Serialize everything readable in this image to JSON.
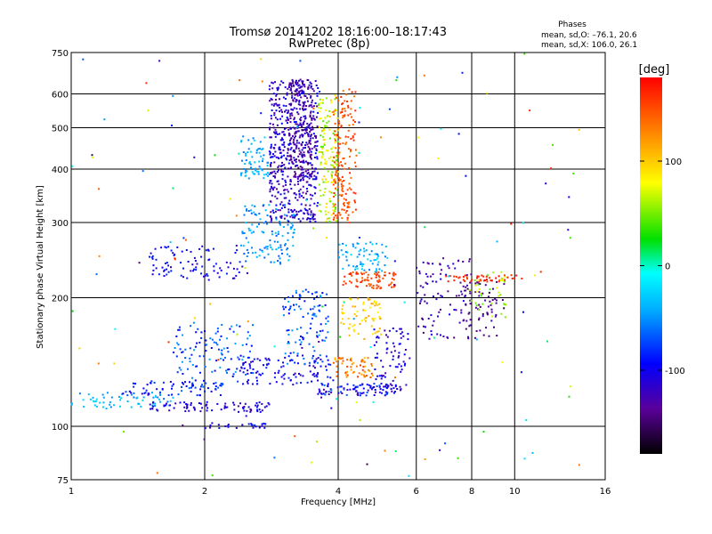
{
  "chart_data": {
    "type": "scatter",
    "title": "Tromsø 20141202 18:16:00–18:17:43",
    "subtitle": "RwPretec (8p)",
    "stats": {
      "heading": "Phases",
      "o_line": "mean, sd,O: –76.1, 20.6",
      "x_line": "mean, sd,X: 106.0, 26.1"
    },
    "xlabel": "Frequency [MHz]",
    "ylabel": "Stationary phase Virtual Height [km]",
    "x_scale": "log",
    "y_scale": "log",
    "xlim": [
      1,
      16
    ],
    "ylim": [
      75,
      750
    ],
    "x_ticks": [
      {
        "value": 1,
        "label": "1"
      },
      {
        "value": 2,
        "label": "2"
      },
      {
        "value": 4,
        "label": "4"
      },
      {
        "value": 6,
        "label": "6"
      },
      {
        "value": 8,
        "label": "8"
      },
      {
        "value": 10,
        "label": "10"
      },
      {
        "value": 16,
        "label": "16"
      }
    ],
    "y_ticks": [
      {
        "value": 75,
        "label": "75"
      },
      {
        "value": 100,
        "label": "100"
      },
      {
        "value": 200,
        "label": "200"
      },
      {
        "value": 300,
        "label": "300"
      },
      {
        "value": 400,
        "label": "400"
      },
      {
        "value": 500,
        "label": "500"
      },
      {
        "value": 600,
        "label": "600"
      },
      {
        "value": 750,
        "label": "750"
      }
    ],
    "grid": true,
    "colorbar": {
      "label": "[deg]",
      "min": -180,
      "max": 180,
      "ticks": [
        {
          "value": 100,
          "label": "100"
        },
        {
          "value": 0,
          "label": "0"
        },
        {
          "value": -100,
          "label": "-100"
        }
      ]
    },
    "clusters": [
      {
        "x": [
          1.0,
          1.7
        ],
        "y": [
          110,
          120
        ],
        "phase": [
          -60,
          -20
        ],
        "n": 60
      },
      {
        "x": [
          1.3,
          2.2
        ],
        "y": [
          118,
          128
        ],
        "phase": [
          -110,
          -60
        ],
        "n": 70
      },
      {
        "x": [
          1.5,
          2.8
        ],
        "y": [
          108,
          114
        ],
        "phase": [
          -130,
          -90
        ],
        "n": 80
      },
      {
        "x": [
          2.0,
          2.8
        ],
        "y": [
          99,
          102
        ],
        "phase": [
          -130,
          -80
        ],
        "n": 25
      },
      {
        "x": [
          1.7,
          2.6
        ],
        "y": [
          125,
          175
        ],
        "phase": [
          -100,
          -40
        ],
        "n": 120
      },
      {
        "x": [
          2.4,
          3.9
        ],
        "y": [
          125,
          145
        ],
        "phase": [
          -120,
          -80
        ],
        "n": 100
      },
      {
        "x": [
          3.0,
          3.8
        ],
        "y": [
          140,
          210
        ],
        "phase": [
          -100,
          -40
        ],
        "n": 110
      },
      {
        "x": [
          3.6,
          5.4
        ],
        "y": [
          118,
          126
        ],
        "phase": [
          -130,
          -60
        ],
        "n": 90
      },
      {
        "x": [
          4.8,
          5.8
        ],
        "y": [
          120,
          170
        ],
        "phase": [
          -130,
          -90
        ],
        "n": 80
      },
      {
        "x": [
          3.9,
          4.8
        ],
        "y": [
          130,
          145
        ],
        "phase": [
          100,
          160
        ],
        "n": 60
      },
      {
        "x": [
          4.0,
          5.0
        ],
        "y": [
          160,
          200
        ],
        "phase": [
          80,
          120
        ],
        "n": 70
      },
      {
        "x": [
          4.1,
          5.4
        ],
        "y": [
          210,
          230
        ],
        "phase": [
          140,
          170
        ],
        "n": 80
      },
      {
        "x": [
          4.0,
          5.2
        ],
        "y": [
          230,
          270
        ],
        "phase": [
          -60,
          -20
        ],
        "n": 70
      },
      {
        "x": [
          1.5,
          2.5
        ],
        "y": [
          220,
          265
        ],
        "phase": [
          -120,
          -80
        ],
        "n": 90
      },
      {
        "x": [
          2.4,
          3.2
        ],
        "y": [
          240,
          330
        ],
        "phase": [
          -70,
          -30
        ],
        "n": 120
      },
      {
        "x": [
          2.4,
          2.8
        ],
        "y": [
          380,
          480
        ],
        "phase": [
          -60,
          -20
        ],
        "n": 70
      },
      {
        "x": [
          2.8,
          3.6
        ],
        "y": [
          300,
          650
        ],
        "phase": [
          -140,
          -90
        ],
        "n": 520
      },
      {
        "x": [
          3.1,
          3.5
        ],
        "y": [
          380,
          650
        ],
        "phase": [
          -150,
          -110
        ],
        "n": 200
      },
      {
        "x": [
          3.6,
          4.0
        ],
        "y": [
          300,
          600
        ],
        "phase": [
          40,
          100
        ],
        "n": 150
      },
      {
        "x": [
          3.9,
          4.4
        ],
        "y": [
          300,
          620
        ],
        "phase": [
          130,
          170
        ],
        "n": 170
      },
      {
        "x": [
          6.0,
          8.0
        ],
        "y": [
          160,
          250
        ],
        "phase": [
          -150,
          -100
        ],
        "n": 90
      },
      {
        "x": [
          7.5,
          9.5
        ],
        "y": [
          160,
          220
        ],
        "phase": [
          -160,
          -120
        ],
        "n": 70
      },
      {
        "x": [
          7.0,
          10.5
        ],
        "y": [
          218,
          226
        ],
        "phase": [
          150,
          175
        ],
        "n": 45
      },
      {
        "x": [
          7.8,
          9.6
        ],
        "y": [
          180,
          230
        ],
        "phase": [
          40,
          80
        ],
        "n": 35
      },
      {
        "x": [
          1.0,
          14.0
        ],
        "y": [
          76,
          750
        ],
        "phase": [
          -160,
          170
        ],
        "n": 140
      }
    ]
  }
}
